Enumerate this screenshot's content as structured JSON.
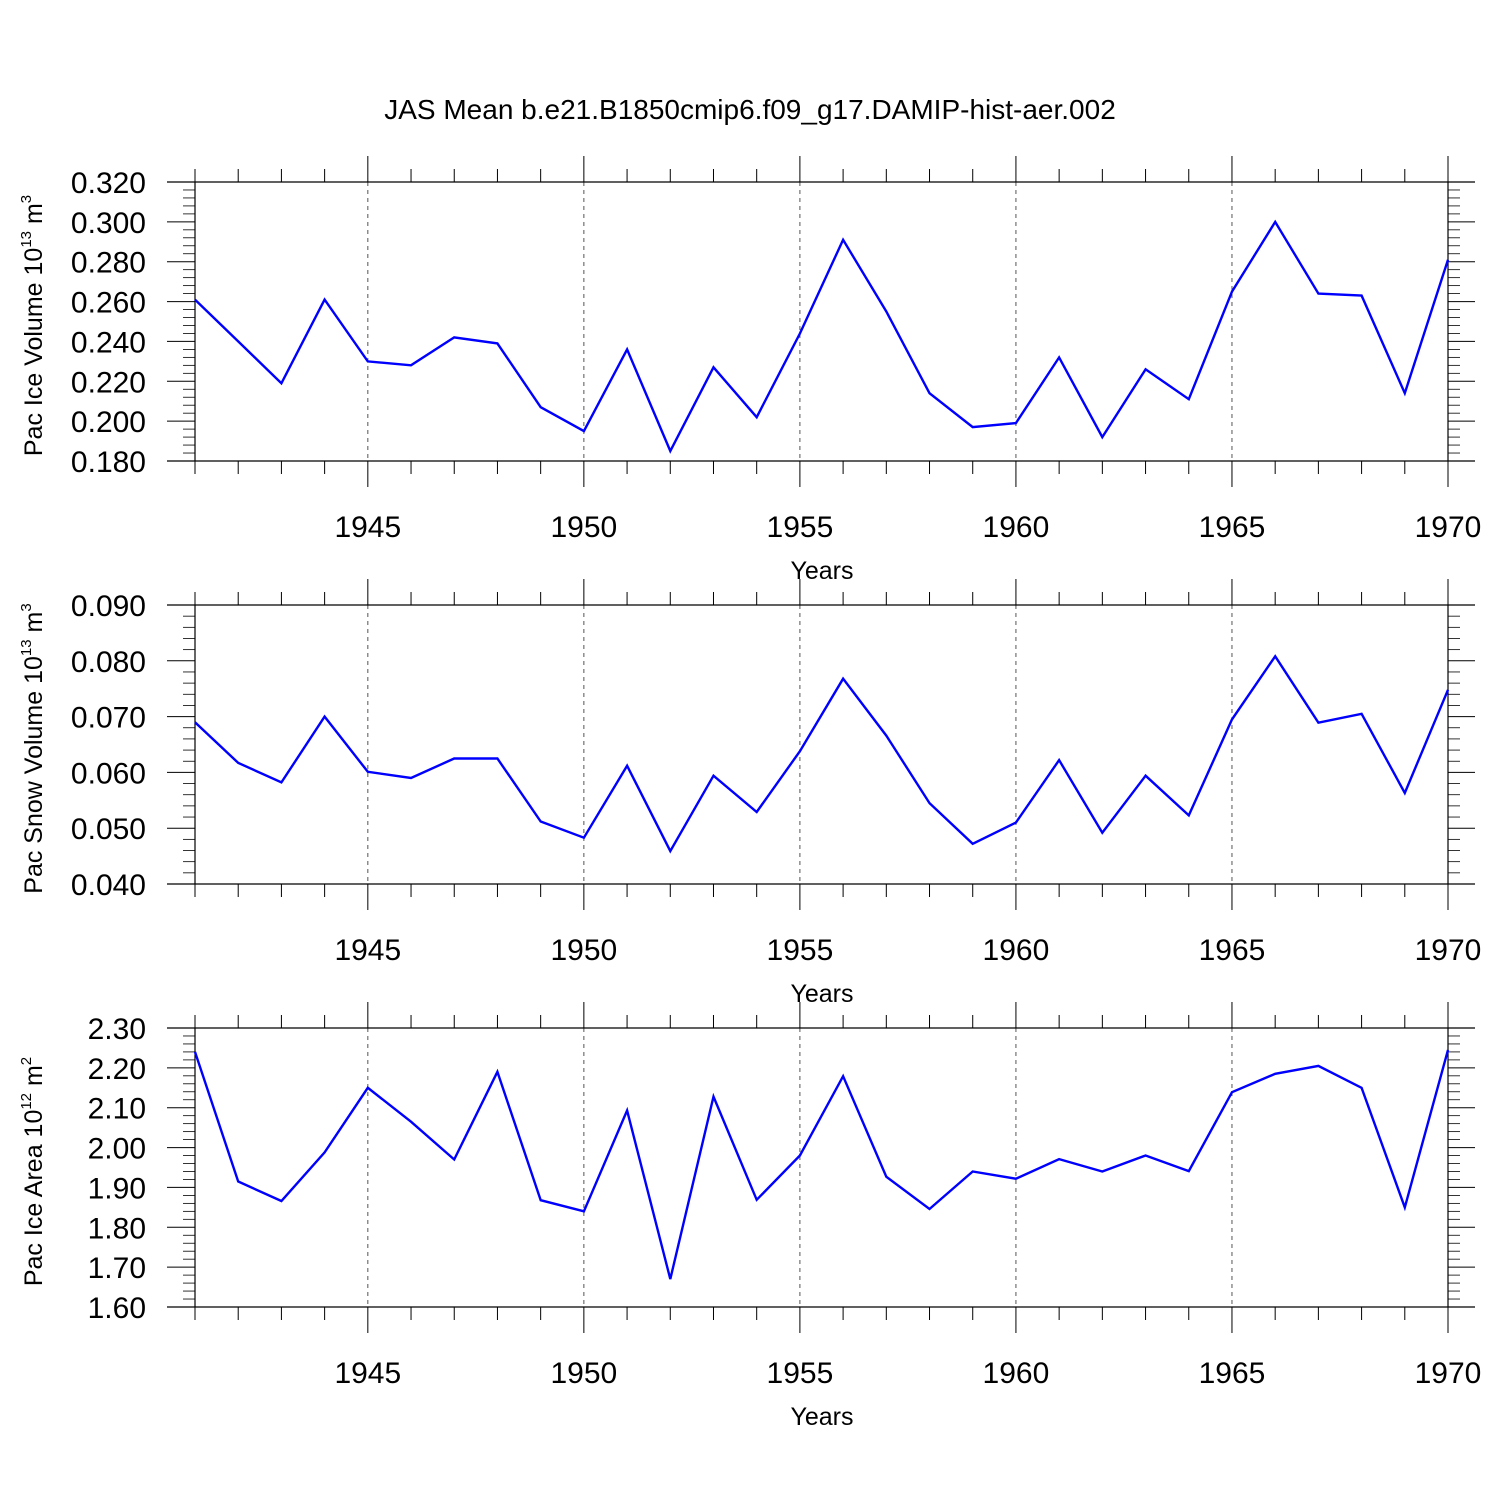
{
  "figure": {
    "title": "JAS Mean b.e21.B1850cmip6.f09_g17.DAMIP-hist-aer.002"
  },
  "chart_data": [
    {
      "type": "line",
      "ylabel": {
        "text": "Pac Ice Volume 10",
        "sup1": "13",
        "mid": " m",
        "sup2": "3"
      },
      "xlabel": "Years",
      "xlim": [
        1941,
        1970
      ],
      "ylim": [
        0.18,
        0.32
      ],
      "xticks": [
        1945,
        1950,
        1955,
        1960,
        1965,
        1970
      ],
      "yticks": [
        0.18,
        0.2,
        0.22,
        0.24,
        0.26,
        0.28,
        0.3,
        0.32
      ],
      "ytick_labels": [
        "0.180",
        "0.200",
        "0.220",
        "0.240",
        "0.260",
        "0.280",
        "0.300",
        "0.320"
      ],
      "grid": "dashed vertical at major x ticks",
      "series": [
        {
          "color": "#0000ff",
          "x": [
            1941,
            1942,
            1943,
            1944,
            1945,
            1946,
            1947,
            1948,
            1949,
            1950,
            1951,
            1952,
            1953,
            1954,
            1955,
            1956,
            1957,
            1958,
            1959,
            1960,
            1961,
            1962,
            1963,
            1964,
            1965,
            1966,
            1967,
            1968,
            1969,
            1970
          ],
          "y": [
            0.261,
            0.24,
            0.219,
            0.261,
            0.23,
            0.228,
            0.242,
            0.239,
            0.207,
            0.195,
            0.236,
            0.185,
            0.227,
            0.202,
            0.244,
            0.291,
            0.255,
            0.214,
            0.197,
            0.199,
            0.232,
            0.192,
            0.226,
            0.211,
            0.265,
            0.3,
            0.264,
            0.263,
            0.214,
            0.281
          ]
        }
      ]
    },
    {
      "type": "line",
      "ylabel": {
        "text": "Pac Snow Volume 10",
        "sup1": "13",
        "mid": " m",
        "sup2": "3"
      },
      "xlabel": "Years",
      "xlim": [
        1941,
        1970
      ],
      "ylim": [
        0.04,
        0.09
      ],
      "xticks": [
        1945,
        1950,
        1955,
        1960,
        1965,
        1970
      ],
      "yticks": [
        0.04,
        0.05,
        0.06,
        0.07,
        0.08,
        0.09
      ],
      "ytick_labels": [
        "0.040",
        "0.050",
        "0.060",
        "0.070",
        "0.080",
        "0.090"
      ],
      "grid": "dashed vertical at major x ticks",
      "series": [
        {
          "color": "#0000ff",
          "x": [
            1941,
            1942,
            1943,
            1944,
            1945,
            1946,
            1947,
            1948,
            1949,
            1950,
            1951,
            1952,
            1953,
            1954,
            1955,
            1956,
            1957,
            1958,
            1959,
            1960,
            1961,
            1962,
            1963,
            1964,
            1965,
            1966,
            1967,
            1968,
            1969,
            1970
          ],
          "y": [
            0.069,
            0.0617,
            0.0582,
            0.07,
            0.0601,
            0.059,
            0.0625,
            0.0625,
            0.0512,
            0.0483,
            0.0612,
            0.0459,
            0.0594,
            0.0529,
            0.0638,
            0.0768,
            0.0666,
            0.0545,
            0.0472,
            0.051,
            0.0622,
            0.0492,
            0.0594,
            0.0523,
            0.0695,
            0.0808,
            0.0689,
            0.0705,
            0.0563,
            0.0748
          ]
        }
      ]
    },
    {
      "type": "line",
      "ylabel": {
        "text": "Pac Ice Area 10",
        "sup1": "12",
        "mid": " m",
        "sup2": "2"
      },
      "xlabel": "Years",
      "xlim": [
        1941,
        1970
      ],
      "ylim": [
        1.6,
        2.3
      ],
      "xticks": [
        1945,
        1950,
        1955,
        1960,
        1965,
        1970
      ],
      "yticks": [
        1.6,
        1.7,
        1.8,
        1.9,
        2.0,
        2.1,
        2.2,
        2.3
      ],
      "ytick_labels": [
        "1.60",
        "1.70",
        "1.80",
        "1.90",
        "2.00",
        "2.10",
        "2.20",
        "2.30"
      ],
      "grid": "dashed vertical at major x ticks",
      "series": [
        {
          "color": "#0000ff",
          "x": [
            1941,
            1942,
            1943,
            1944,
            1945,
            1946,
            1947,
            1948,
            1949,
            1950,
            1951,
            1952,
            1953,
            1954,
            1955,
            1956,
            1957,
            1958,
            1959,
            1960,
            1961,
            1962,
            1963,
            1964,
            1965,
            1966,
            1967,
            1968,
            1969,
            1970
          ],
          "y": [
            2.24,
            1.915,
            1.866,
            1.988,
            2.15,
            2.065,
            1.97,
            2.19,
            1.868,
            1.84,
            2.093,
            1.67,
            2.128,
            1.869,
            1.98,
            2.179,
            1.927,
            1.846,
            1.94,
            1.922,
            1.971,
            1.94,
            1.98,
            1.941,
            2.139,
            2.185,
            2.205,
            2.15,
            1.85,
            2.245
          ]
        }
      ]
    }
  ]
}
